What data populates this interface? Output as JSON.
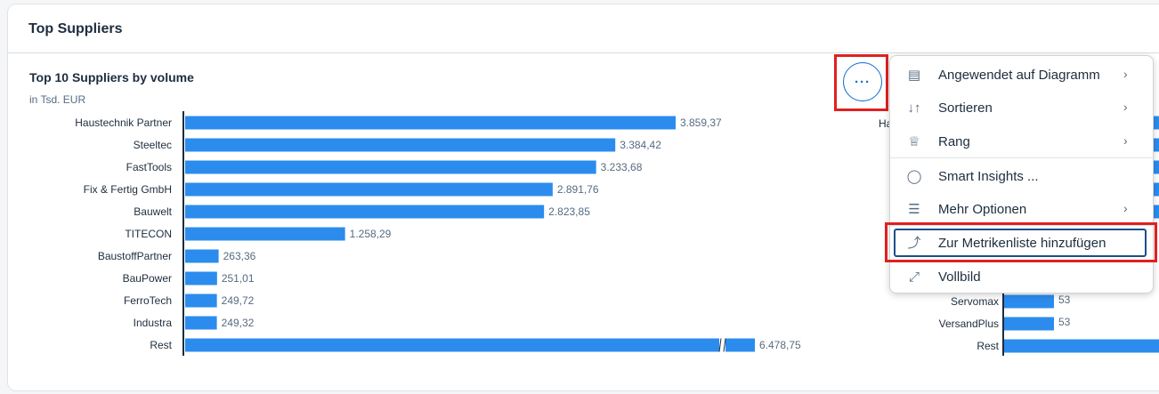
{
  "card": {
    "title": "Top Suppliers"
  },
  "left_chart": {
    "title": "Top 10 Suppliers by volume",
    "subtitle": "in Tsd. EUR"
  },
  "more_button": {
    "label": "···"
  },
  "menu": {
    "items": [
      {
        "label": "Angewendet auf Diagramm",
        "icon": "chart-icon",
        "has_submenu": true
      },
      {
        "label": "Sortieren",
        "icon": "sort-icon",
        "has_submenu": true
      },
      {
        "label": "Rang",
        "icon": "trophy-icon",
        "has_submenu": true
      },
      {
        "label": "Smart Insights ...",
        "icon": "lightbulb-icon",
        "has_submenu": false
      },
      {
        "label": "Mehr Optionen",
        "icon": "options-icon",
        "has_submenu": true
      },
      {
        "label": "Zur Metrikenliste hinzufügen",
        "icon": "add-metric-icon",
        "has_submenu": false,
        "selected": true
      },
      {
        "label": "Vollbild",
        "icon": "fullscreen-icon",
        "has_submenu": false
      }
    ]
  },
  "right_chart": {
    "visible_row_labels": [
      "Ha",
      "Servomax",
      "VersandPlus",
      "Rest"
    ]
  },
  "chart_data": [
    {
      "type": "bar",
      "orientation": "horizontal",
      "title": "Top 10 Suppliers by volume",
      "subtitle": "in Tsd. EUR",
      "categories": [
        "Haustechnik Partner",
        "Steeltec",
        "FastTools",
        "Fix & Fertig GmbH",
        "Bauwelt",
        "TITECON",
        "BaustoffPartner",
        "BauPower",
        "FerroTech",
        "Industra",
        "Rest"
      ],
      "values": [
        3859.37,
        3384.42,
        3233.68,
        2891.76,
        2823.85,
        1258.29,
        263.36,
        251.01,
        249.72,
        249.32,
        6478.75
      ],
      "value_labels": [
        "3.859,37",
        "3.384,42",
        "3.233,68",
        "2.891,76",
        "2.823,85",
        "1.258,29",
        "263,36",
        "251,01",
        "249,72",
        "249,32",
        "6.478,75"
      ],
      "axis_break_on": "Rest",
      "bar_color": "#2b8cee"
    },
    {
      "type": "bar",
      "orientation": "horizontal",
      "partially_visible": true,
      "categories": [
        "Servomax",
        "VersandPlus",
        "Rest"
      ],
      "value_labels": [
        "53",
        "53",
        ""
      ],
      "bar_color": "#2b8cee"
    }
  ]
}
